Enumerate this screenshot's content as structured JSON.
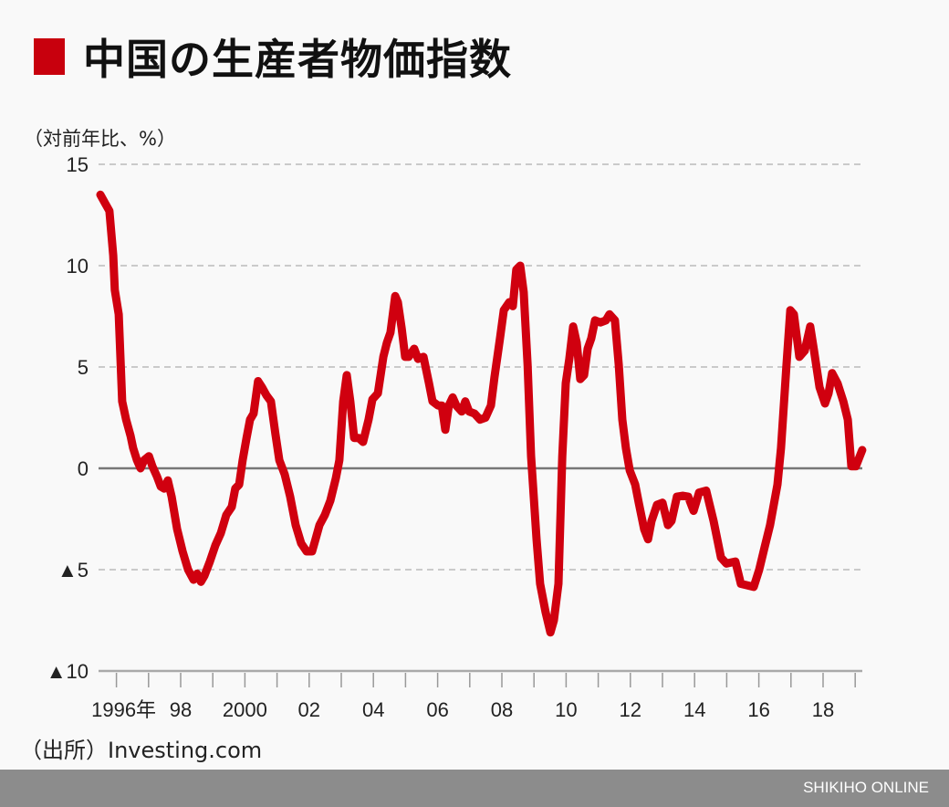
{
  "chart_data": {
    "type": "line",
    "title": "中国の生産者物価指数",
    "ylabel": "（対前年比、%）",
    "xlabel": "",
    "ylim": [
      -10,
      15
    ],
    "xlim": [
      1996.0,
      2019.75
    ],
    "y_ticks": [
      {
        "value": 15,
        "label": "15"
      },
      {
        "value": 10,
        "label": "10"
      },
      {
        "value": 5,
        "label": "5"
      },
      {
        "value": 0,
        "label": "0"
      },
      {
        "value": -5,
        "label": "▲5"
      },
      {
        "value": -10,
        "label": "▲10"
      }
    ],
    "x_tick_years": [
      1996,
      1997,
      1998,
      1999,
      2000,
      2001,
      2002,
      2003,
      2004,
      2005,
      2006,
      2007,
      2008,
      2009,
      2010,
      2011,
      2012,
      2013,
      2014,
      2015,
      2016,
      2017,
      2018,
      2019
    ],
    "x_labels": [
      {
        "year": 1996,
        "label": "1996年"
      },
      {
        "year": 1998,
        "label": "98"
      },
      {
        "year": 2000,
        "label": "2000"
      },
      {
        "year": 2002,
        "label": "02"
      },
      {
        "year": 2004,
        "label": "04"
      },
      {
        "year": 2006,
        "label": "06"
      },
      {
        "year": 2008,
        "label": "08"
      },
      {
        "year": 2010,
        "label": "10"
      },
      {
        "year": 2012,
        "label": "12"
      },
      {
        "year": 2014,
        "label": "14"
      },
      {
        "year": 2016,
        "label": "16"
      },
      {
        "year": 2018,
        "label": "18"
      }
    ],
    "grid": "dashed horizontal",
    "series": [
      {
        "name": "生産者物価指数",
        "color": "#d0000f",
        "x": [
          1996.0,
          1996.14,
          1996.28,
          1996.4,
          1996.45,
          1996.57,
          1996.68,
          1996.8,
          1996.94,
          1997.02,
          1997.14,
          1997.25,
          1997.36,
          1997.51,
          1997.62,
          1997.76,
          1997.88,
          1997.99,
          1998.1,
          1998.22,
          1998.39,
          1998.56,
          1998.73,
          1998.9,
          1999.01,
          1999.13,
          1999.24,
          1999.41,
          1999.58,
          1999.75,
          1999.92,
          2000.09,
          2000.2,
          2000.32,
          2000.43,
          2000.55,
          2000.66,
          2000.77,
          2000.91,
          2001.03,
          2001.17,
          2001.31,
          2001.45,
          2001.57,
          2001.74,
          2001.91,
          2002.08,
          2002.25,
          2002.42,
          2002.59,
          2002.7,
          2002.82,
          2002.99,
          2003.16,
          2003.33,
          2003.44,
          2003.56,
          2003.67,
          2003.78,
          2003.9,
          2004.04,
          2004.18,
          2004.35,
          2004.47,
          2004.64,
          2004.81,
          2004.92,
          2005.03,
          2005.18,
          2005.26,
          2005.38,
          2005.49,
          2005.6,
          2005.77,
          2005.89,
          2006.06,
          2006.23,
          2006.34,
          2006.51,
          2006.63,
          2006.74,
          2006.85,
          2006.97,
          2007.08,
          2007.25,
          2007.36,
          2007.48,
          2007.65,
          2007.82,
          2007.99,
          2008.16,
          2008.27,
          2008.44,
          2008.56,
          2008.73,
          2008.84,
          2008.95,
          2009.07,
          2009.18,
          2009.3,
          2009.41,
          2009.58,
          2009.69,
          2009.86,
          2010.01,
          2010.12,
          2010.26,
          2010.38,
          2010.49,
          2010.6,
          2010.72,
          2010.83,
          2010.94,
          2011.06,
          2011.17,
          2011.28,
          2011.4,
          2011.57,
          2011.74,
          2011.85,
          2012.02,
          2012.14,
          2012.25,
          2012.36,
          2012.48,
          2012.65,
          2012.76,
          2012.93,
          2013.05,
          2013.16,
          2013.33,
          2013.5,
          2013.67,
          2013.78,
          2013.95,
          2014.13,
          2014.3,
          2014.47,
          2014.64,
          2014.86,
          2015.09,
          2015.32,
          2015.49,
          2015.77,
          2015.94,
          2016.34,
          2016.51,
          2016.68,
          2016.85,
          2017.08,
          2017.19,
          2017.36,
          2017.48,
          2017.59,
          2017.76,
          2017.93,
          2018.1,
          2018.22,
          2018.39,
          2018.56,
          2018.67,
          2018.78,
          2018.95,
          2019.13,
          2019.27,
          2019.38,
          2019.52,
          2019.72
        ],
        "y": [
          13.5,
          13.1,
          12.7,
          10.5,
          8.8,
          7.6,
          3.3,
          2.4,
          1.6,
          1.0,
          0.4,
          0.0,
          0.4,
          0.6,
          0.1,
          -0.4,
          -0.9,
          -1.0,
          -0.6,
          -1.4,
          -3.0,
          -4.1,
          -5.0,
          -5.5,
          -5.2,
          -5.6,
          -5.3,
          -4.6,
          -3.8,
          -3.2,
          -2.3,
          -1.9,
          -1.0,
          -0.8,
          0.4,
          1.5,
          2.4,
          2.7,
          4.3,
          4.0,
          3.6,
          3.3,
          1.7,
          0.4,
          -0.3,
          -1.4,
          -2.8,
          -3.7,
          -4.1,
          -4.1,
          -3.5,
          -2.8,
          -2.3,
          -1.6,
          -0.5,
          0.4,
          3.3,
          4.6,
          3.3,
          1.5,
          1.5,
          1.3,
          2.4,
          3.4,
          3.7,
          5.5,
          6.2,
          6.7,
          8.5,
          8.2,
          6.9,
          5.5,
          5.5,
          5.9,
          5.4,
          5.5,
          4.2,
          3.3,
          3.1,
          3.1,
          1.9,
          3.1,
          3.5,
          3.1,
          2.8,
          3.3,
          2.8,
          2.7,
          2.4,
          2.5,
          3.1,
          4.5,
          6.4,
          7.8,
          8.2,
          8.0,
          9.8,
          10.0,
          8.7,
          5.1,
          0.6,
          -3.5,
          -5.7,
          -7.1,
          -8.1,
          -7.5,
          -5.7,
          0.6,
          4.2,
          5.4,
          7.0,
          6.2,
          4.4,
          4.6,
          5.9,
          6.4,
          7.3,
          7.2,
          7.3,
          7.6,
          7.3,
          5.1,
          2.4,
          1.0,
          -0.1,
          -0.8,
          -1.7,
          -3.0,
          -3.5,
          -2.6,
          -1.8,
          -1.7,
          -2.8,
          -2.6,
          -1.4,
          -1.35,
          -1.4,
          -2.1,
          -1.2,
          -1.1,
          -2.6,
          -4.4,
          -4.7,
          -4.6,
          -5.7,
          -5.85,
          -5.0,
          -3.9,
          -2.8,
          -0.8,
          1.0,
          5.1,
          7.8,
          7.6,
          5.5,
          5.8,
          7.0,
          5.8,
          4.0,
          3.2,
          3.7,
          4.7,
          4.2,
          3.3,
          2.4,
          0.1,
          0.1,
          0.9
        ]
      }
    ]
  },
  "source": "（出所）Investing.com",
  "footer": "SHIKIHO ONLINE",
  "colors": {
    "accent": "#c8000d",
    "line": "#d0000f",
    "footer_bg": "#8c8c8c",
    "grid": "#bbbbbb",
    "zero_axis": "#777777"
  }
}
